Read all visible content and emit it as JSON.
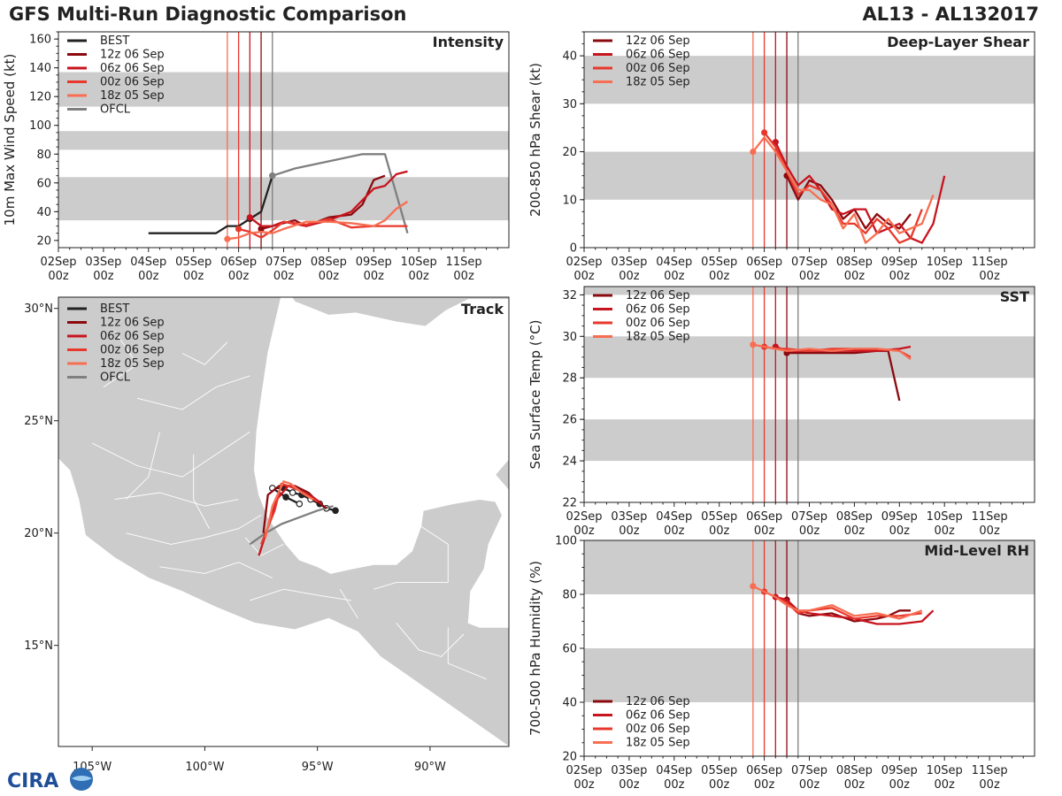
{
  "header": {
    "title": "GFS Multi-Run Diagnostic Comparison",
    "storm_id": "AL13 - AL132017"
  },
  "logo_text": "CIRA",
  "colors": {
    "best": "#222222",
    "run_12z": "#8b0a0f",
    "run_06z": "#c8141e",
    "run_00z": "#e8382c",
    "run_18z": "#f86e52",
    "ofcl": "#7f7f7f",
    "band": "#cccccc",
    "land": "#cccccc",
    "border": "#ffffff"
  },
  "time_axis": {
    "labels": [
      "02Sep 00z",
      "03Sep 00z",
      "04Sep 00z",
      "05Sep 00z",
      "06Sep 00z",
      "07Sep 00z",
      "08Sep 00z",
      "09Sep 00z",
      "10Sep 00z",
      "11Sep 00z"
    ],
    "range": [
      0,
      10
    ],
    "init_lines": [
      {
        "series": "run_18z",
        "t": 3.75
      },
      {
        "series": "run_00z",
        "t": 4.0
      },
      {
        "series": "run_06z",
        "t": 4.25
      },
      {
        "series": "run_12z",
        "t": 4.5
      },
      {
        "series": "ofcl",
        "t": 4.75
      }
    ]
  },
  "chart_data": [
    {
      "id": "intensity",
      "type": "line",
      "title": "Intensity",
      "ylabel": "10m Max Wind Speed (kt)",
      "ylim": [
        15,
        165
      ],
      "yticks": [
        20,
        40,
        60,
        80,
        100,
        120,
        140,
        160
      ],
      "bands": [
        [
          34,
          64
        ],
        [
          83,
          96
        ],
        [
          113,
          137
        ]
      ],
      "show_init_lines": true,
      "legend": {
        "position": "top-left",
        "entries": [
          "BEST",
          "12z 06 Sep",
          "06z 06 Sep",
          "00z 06 Sep",
          "18z 05 Sep",
          "OFCL"
        ]
      },
      "series": [
        {
          "name": "BEST",
          "key": "best",
          "x": [
            2.0,
            3.0,
            3.5,
            3.75,
            4.0,
            4.25,
            4.5,
            4.75
          ],
          "y": [
            25,
            25,
            25,
            30,
            30,
            35,
            40,
            65
          ],
          "dots": [
            4.25,
            4.75
          ]
        },
        {
          "name": "OFCL",
          "key": "ofcl",
          "x": [
            4.75,
            5.25,
            6.0,
            6.75,
            7.25,
            7.75
          ],
          "y": [
            65,
            70,
            75,
            80,
            80,
            25
          ],
          "dots": [
            4.75
          ]
        },
        {
          "name": "12z 06 Sep",
          "key": "run_12z",
          "x": [
            4.5,
            4.75,
            5.0,
            5.25,
            5.5,
            6.0,
            6.5,
            6.75,
            7.0,
            7.25
          ],
          "y": [
            28,
            30,
            32,
            34,
            30,
            36,
            38,
            45,
            62,
            65
          ],
          "dots": [
            4.5
          ]
        },
        {
          "name": "06z 06 Sep",
          "key": "run_06z",
          "x": [
            4.25,
            4.5,
            4.75,
            5.0,
            5.5,
            6.0,
            6.5,
            7.0,
            7.25,
            7.5,
            7.75
          ],
          "y": [
            36,
            30,
            30,
            33,
            30,
            34,
            40,
            56,
            58,
            66,
            68
          ],
          "dots": [
            4.25
          ]
        },
        {
          "name": "00z 06 Sep",
          "key": "run_00z",
          "x": [
            4.0,
            4.25,
            4.5,
            4.75,
            5.0,
            5.5,
            6.0,
            6.5,
            7.0,
            7.25,
            7.5,
            7.75
          ],
          "y": [
            28,
            26,
            22,
            27,
            33,
            31,
            35,
            29,
            30,
            30,
            30,
            30
          ],
          "dots": [
            4.0
          ]
        },
        {
          "name": "18z 05 Sep",
          "key": "run_18z",
          "x": [
            3.75,
            4.0,
            4.25,
            4.5,
            4.75,
            5.0,
            5.5,
            6.0,
            6.5,
            7.0,
            7.25,
            7.5,
            7.75
          ],
          "y": [
            21,
            22,
            25,
            26,
            25,
            28,
            33,
            33,
            32,
            30,
            34,
            42,
            47
          ],
          "dots": [
            3.75
          ]
        }
      ]
    },
    {
      "id": "shear",
      "type": "line",
      "title": "Deep-Layer Shear",
      "ylabel": "200-850 hPa Shear (kt)",
      "ylim": [
        0,
        45
      ],
      "yticks": [
        0,
        10,
        20,
        30,
        40
      ],
      "bands": [
        [
          10,
          20
        ],
        [
          30,
          40
        ]
      ],
      "show_init_lines": true,
      "legend": {
        "position": "top-left",
        "entries": [
          "12z 06 Sep",
          "06z 06 Sep",
          "00z 06 Sep",
          "18z 05 Sep"
        ]
      },
      "series": [
        {
          "name": "12z 06 Sep",
          "key": "run_12z",
          "x": [
            4.5,
            4.75,
            5.0,
            5.25,
            5.5,
            5.75,
            6.0,
            6.25,
            6.5,
            6.75,
            7.0,
            7.25
          ],
          "y": [
            15,
            10,
            14,
            13,
            10,
            6,
            8,
            4,
            7,
            5,
            4,
            7
          ],
          "dots": [
            4.5
          ]
        },
        {
          "name": "06z 06 Sep",
          "key": "run_06z",
          "x": [
            4.25,
            4.5,
            4.75,
            5.0,
            5.25,
            5.5,
            5.75,
            6.0,
            6.25,
            6.5,
            6.75,
            7.0,
            7.25,
            7.5,
            7.75,
            8.0
          ],
          "y": [
            22,
            17,
            13,
            15,
            12,
            8,
            7,
            8,
            8,
            3,
            4,
            5,
            2,
            1,
            5,
            15
          ],
          "dots": [
            4.25
          ]
        },
        {
          "name": "00z 06 Sep",
          "key": "run_00z",
          "x": [
            4.0,
            4.25,
            4.5,
            4.75,
            5.0,
            5.25,
            5.5,
            5.75,
            6.0,
            6.25,
            6.5,
            6.75,
            7.0,
            7.25,
            7.5
          ],
          "y": [
            24,
            21,
            16,
            11,
            13,
            12,
            9,
            5,
            5,
            3,
            6,
            4,
            1,
            2,
            8
          ],
          "dots": [
            4.0
          ]
        },
        {
          "name": "18z 05 Sep",
          "key": "run_18z",
          "x": [
            3.75,
            4.0,
            4.25,
            4.5,
            4.75,
            5.0,
            5.25,
            5.5,
            5.75,
            6.0,
            6.25,
            6.5,
            6.75,
            7.0,
            7.25,
            7.5,
            7.75
          ],
          "y": [
            20,
            23,
            20,
            16,
            12,
            12,
            10,
            9,
            4,
            7,
            1,
            3,
            6,
            3,
            4,
            5,
            11
          ],
          "dots": [
            3.75
          ]
        }
      ]
    },
    {
      "id": "sst",
      "type": "line",
      "title": "SST",
      "ylabel": "Sea Surface Temp (°C)",
      "ylim": [
        22,
        32.4
      ],
      "yticks": [
        22,
        24,
        26,
        28,
        30,
        32
      ],
      "bands": [
        [
          24,
          26
        ],
        [
          28,
          30
        ],
        [
          32,
          32.4
        ]
      ],
      "show_init_lines": true,
      "legend": {
        "position": "top-left",
        "entries": [
          "12z 06 Sep",
          "06z 06 Sep",
          "00z 06 Sep",
          "18z 05 Sep"
        ]
      },
      "series": [
        {
          "name": "12z 06 Sep",
          "key": "run_12z",
          "x": [
            4.5,
            4.75,
            5.0,
            5.5,
            6.0,
            6.5,
            6.75,
            7.0
          ],
          "y": [
            29.2,
            29.2,
            29.2,
            29.2,
            29.2,
            29.3,
            29.3,
            26.9
          ],
          "dots": [
            4.5
          ]
        },
        {
          "name": "06z 06 Sep",
          "key": "run_06z",
          "x": [
            4.25,
            4.5,
            5.0,
            5.5,
            6.0,
            6.5,
            7.0,
            7.25
          ],
          "y": [
            29.5,
            29.3,
            29.3,
            29.3,
            29.3,
            29.3,
            29.4,
            29.5
          ],
          "dots": [
            4.25
          ]
        },
        {
          "name": "00z 06 Sep",
          "key": "run_00z",
          "x": [
            4.0,
            4.25,
            4.5,
            5.0,
            5.5,
            6.0,
            6.5,
            7.0,
            7.25
          ],
          "y": [
            29.5,
            29.4,
            29.4,
            29.3,
            29.4,
            29.4,
            29.4,
            29.3,
            29.0
          ],
          "dots": [
            4.0
          ]
        },
        {
          "name": "18z 05 Sep",
          "key": "run_18z",
          "x": [
            3.75,
            4.0,
            4.25,
            4.5,
            5.0,
            5.5,
            6.0,
            6.5,
            7.0,
            7.25
          ],
          "y": [
            29.6,
            29.5,
            29.4,
            29.3,
            29.4,
            29.3,
            29.4,
            29.4,
            29.3,
            28.9
          ],
          "dots": [
            3.75
          ]
        }
      ]
    },
    {
      "id": "rh",
      "type": "line",
      "title": "Mid-Level RH",
      "ylabel": "700-500 hPa Humidity (%)",
      "ylim": [
        20,
        100
      ],
      "yticks": [
        20,
        40,
        60,
        80,
        100
      ],
      "bands": [
        [
          40,
          60
        ],
        [
          80,
          100
        ]
      ],
      "show_init_lines": true,
      "legend": {
        "position": "bottom-left",
        "entries": [
          "12z 06 Sep",
          "06z 06 Sep",
          "00z 06 Sep",
          "18z 05 Sep"
        ]
      },
      "series": [
        {
          "name": "12z 06 Sep",
          "key": "run_12z",
          "x": [
            4.5,
            4.75,
            5.0,
            5.5,
            6.0,
            6.5,
            6.75,
            7.0,
            7.25
          ],
          "y": [
            78,
            73,
            72,
            73,
            70,
            71,
            72,
            74,
            74
          ],
          "dots": [
            4.5
          ]
        },
        {
          "name": "06z 06 Sep",
          "key": "run_06z",
          "x": [
            4.25,
            4.5,
            4.75,
            5.0,
            5.5,
            6.0,
            6.5,
            7.0,
            7.5,
            7.75
          ],
          "y": [
            79,
            78,
            74,
            73,
            72,
            71,
            69,
            69,
            70,
            74
          ],
          "dots": [
            4.25
          ]
        },
        {
          "name": "00z 06 Sep",
          "key": "run_00z",
          "x": [
            4.0,
            4.25,
            4.5,
            4.75,
            5.0,
            5.5,
            6.0,
            6.5,
            7.0,
            7.5
          ],
          "y": [
            81,
            79,
            77,
            73,
            74,
            75,
            71,
            72,
            72,
            73
          ],
          "dots": [
            4.0
          ]
        },
        {
          "name": "18z 05 Sep",
          "key": "run_18z",
          "x": [
            3.75,
            4.0,
            4.25,
            4.5,
            4.75,
            5.0,
            5.5,
            6.0,
            6.5,
            7.0,
            7.5
          ],
          "y": [
            83,
            81,
            79,
            76,
            74,
            74,
            76,
            72,
            73,
            71,
            74
          ],
          "dots": [
            3.75
          ]
        }
      ]
    },
    {
      "id": "track",
      "type": "scatter",
      "title": "Track",
      "xlim": [
        -106.5,
        -86.5
      ],
      "ylim": [
        10.5,
        30.5
      ],
      "xticks": [
        {
          "v": -105,
          "label": "105°W"
        },
        {
          "v": -100,
          "label": "100°W"
        },
        {
          "v": -95,
          "label": "95°W"
        },
        {
          "v": -90,
          "label": "90°W"
        }
      ],
      "yticks": [
        {
          "v": 15,
          "label": "15°N"
        },
        {
          "v": 20,
          "label": "20°N"
        },
        {
          "v": 25,
          "label": "25°N"
        },
        {
          "v": 30,
          "label": "30°N"
        }
      ],
      "legend": {
        "position": "top-left",
        "entries": [
          "BEST",
          "12z 06 Sep",
          "06z 06 Sep",
          "00z 06 Sep",
          "18z 05 Sep",
          "OFCL"
        ]
      },
      "series": [
        {
          "name": "BEST",
          "key": "best",
          "lon": [
            -94.2,
            -94.6,
            -94.9,
            -95.3,
            -95.7,
            -96.1,
            -96.5,
            -97.0,
            -96.4,
            -95.8
          ],
          "lat": [
            21.0,
            21.1,
            21.3,
            21.5,
            21.7,
            21.8,
            22.0,
            22.0,
            21.6,
            21.3
          ],
          "dots": "all"
        },
        {
          "name": "OFCL",
          "key": "ofcl",
          "lon": [
            -94.3,
            -95.0,
            -95.8,
            -96.6,
            -97.3,
            -98.0
          ],
          "lat": [
            21.2,
            21.0,
            20.7,
            20.4,
            20.0,
            19.5
          ],
          "dots": "none"
        },
        {
          "name": "12z 06 Sep",
          "key": "run_12z",
          "lon": [
            -94.6,
            -95.0,
            -95.4,
            -96.0,
            -96.7,
            -97.2,
            -97.4
          ],
          "lat": [
            21.1,
            21.4,
            21.8,
            22.1,
            22.1,
            21.7,
            20.0
          ],
          "dots": "none"
        },
        {
          "name": "06z 06 Sep",
          "key": "run_06z",
          "lon": [
            -94.8,
            -95.2,
            -95.8,
            -96.3,
            -96.8,
            -97.6
          ],
          "lat": [
            21.3,
            21.6,
            21.9,
            22.1,
            21.5,
            19.0
          ],
          "dots": "none"
        },
        {
          "name": "00z 06 Sep",
          "key": "run_00z",
          "lon": [
            -95.0,
            -95.5,
            -96.0,
            -96.6,
            -96.9,
            -97.5
          ],
          "lat": [
            21.4,
            21.7,
            22.0,
            22.2,
            21.0,
            19.5
          ],
          "dots": "none"
        },
        {
          "name": "18z 05 Sep",
          "key": "run_18z",
          "lon": [
            -95.2,
            -95.7,
            -96.2,
            -96.5,
            -97.0,
            -97.3
          ],
          "lat": [
            21.5,
            21.8,
            22.2,
            22.3,
            21.2,
            19.8
          ],
          "dots": "none"
        }
      ]
    }
  ]
}
